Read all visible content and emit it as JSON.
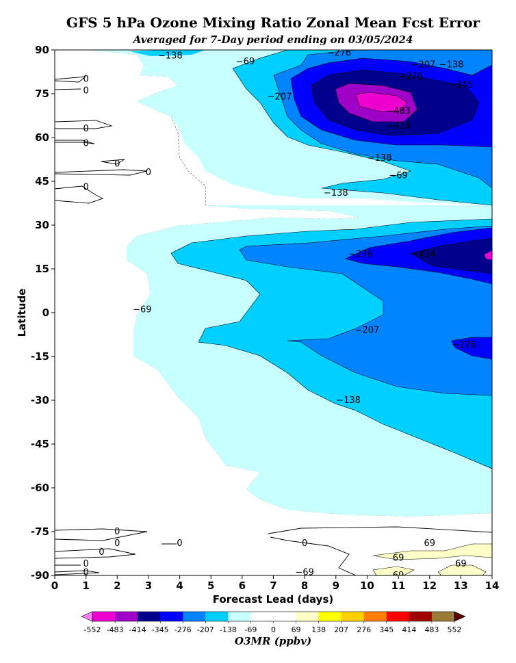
{
  "chart_data": {
    "type": "contour",
    "title": "GFS 5 hPa Ozone Mixing Ratio Zonal Mean Fcst Error",
    "subtitle": "Averaged for 7-Day period ending on 03/05/2024",
    "xlabel": "Forecast Lead (days)",
    "ylabel": "Latitude",
    "xlim": [
      0,
      14
    ],
    "ylim": [
      -90,
      90
    ],
    "x_ticks": [
      "0",
      "1",
      "2",
      "3",
      "4",
      "5",
      "6",
      "7",
      "8",
      "9",
      "10",
      "11",
      "12",
      "13",
      "14"
    ],
    "y_ticks": [
      "90",
      "75",
      "60",
      "45",
      "30",
      "15",
      "0",
      "-15",
      "-30",
      "-45",
      "-60",
      "-75",
      "-90"
    ],
    "colorbar": {
      "label": "O3MR (ppbv)",
      "levels": [
        "-552",
        "-483",
        "-414",
        "-345",
        "-276",
        "-207",
        "-138",
        "-69",
        "0",
        "69",
        "138",
        "207",
        "276",
        "345",
        "414",
        "483",
        "552"
      ],
      "colors": [
        "#ee00d0",
        "#a000c8",
        "#00008c",
        "#0000ff",
        "#0084ff",
        "#00d0ff",
        "#c8ffff",
        "#ffffff",
        "#ffffff",
        "#ffffc8",
        "#ffff00",
        "#ffd000",
        "#ff8000",
        "#ff0000",
        "#a00000",
        "#9a7b38"
      ],
      "under_color": "#ff80ff",
      "over_color": "#5a0000"
    },
    "contour_labels": [
      {
        "text": "−138",
        "x": 3.7,
        "y": 88
      },
      {
        "text": "−69",
        "x": 6.1,
        "y": 86
      },
      {
        "text": "−276",
        "x": 9.1,
        "y": 89
      },
      {
        "text": "−207",
        "x": 11.8,
        "y": 85
      },
      {
        "text": "−138",
        "x": 12.7,
        "y": 85
      },
      {
        "text": "−276",
        "x": 11.4,
        "y": 81
      },
      {
        "text": "−345",
        "x": 13.0,
        "y": 78
      },
      {
        "text": "−207",
        "x": 7.2,
        "y": 74
      },
      {
        "text": "−483",
        "x": 11.0,
        "y": 69
      },
      {
        "text": "−414",
        "x": 11.0,
        "y": 64
      },
      {
        "text": "−138",
        "x": 10.4,
        "y": 53
      },
      {
        "text": "−69",
        "x": 11.0,
        "y": 47
      },
      {
        "text": "−138",
        "x": 9.0,
        "y": 41
      },
      {
        "text": "−276",
        "x": 9.8,
        "y": 20
      },
      {
        "text": "−414",
        "x": 11.8,
        "y": 20
      },
      {
        "text": "−69",
        "x": 2.8,
        "y": 1
      },
      {
        "text": "−207",
        "x": 10.0,
        "y": -6
      },
      {
        "text": "−276",
        "x": 13.1,
        "y": -11
      },
      {
        "text": "−138",
        "x": 9.4,
        "y": -30
      },
      {
        "text": "0",
        "x": 1.0,
        "y": 80
      },
      {
        "text": "0",
        "x": 1.0,
        "y": 76
      },
      {
        "text": "0",
        "x": 1.0,
        "y": 63
      },
      {
        "text": "0",
        "x": 1.0,
        "y": 58
      },
      {
        "text": "0",
        "x": 2.0,
        "y": 51
      },
      {
        "text": "0",
        "x": 3.0,
        "y": 48
      },
      {
        "text": "0",
        "x": 1.0,
        "y": 43
      },
      {
        "text": "0",
        "x": 2.0,
        "y": -75
      },
      {
        "text": "0",
        "x": 2.0,
        "y": -79
      },
      {
        "text": "0",
        "x": 1.5,
        "y": -82
      },
      {
        "text": "0",
        "x": 4.0,
        "y": -79
      },
      {
        "text": "0",
        "x": 1.0,
        "y": -86
      },
      {
        "text": "0",
        "x": 1.0,
        "y": -89
      },
      {
        "text": "0",
        "x": 8.0,
        "y": -79
      },
      {
        "text": "−69",
        "x": 8.0,
        "y": -89
      },
      {
        "text": "69",
        "x": 12.0,
        "y": -79
      },
      {
        "text": "69",
        "x": 11.0,
        "y": -84
      },
      {
        "text": "69",
        "x": 13.0,
        "y": -86
      },
      {
        "text": "69",
        "x": 11.0,
        "y": -90
      }
    ]
  }
}
